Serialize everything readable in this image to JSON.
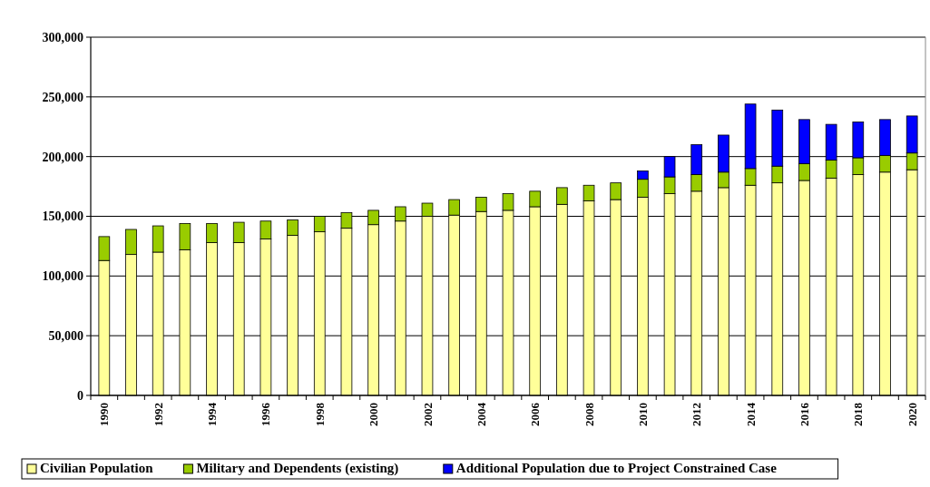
{
  "chart_data": {
    "type": "bar",
    "stacked": true,
    "categories": [
      "1990",
      null,
      "1992",
      null,
      "1994",
      null,
      "1996",
      null,
      "1998",
      null,
      "2000",
      null,
      "2002",
      null,
      "2004",
      null,
      "2006",
      null,
      "2008",
      null,
      "2010",
      null,
      "2012",
      null,
      "2014",
      null,
      "2016",
      null,
      "2018",
      null,
      "2020"
    ],
    "series": [
      {
        "name": "Civilian Population",
        "color": "#ffff99",
        "values": [
          113000,
          118000,
          120000,
          122000,
          128000,
          128000,
          131000,
          134000,
          137000,
          140000,
          143000,
          146000,
          150000,
          151000,
          154000,
          155000,
          158000,
          160000,
          163000,
          164000,
          166000,
          169000,
          171000,
          174000,
          176000,
          178000,
          180000,
          182000,
          185000,
          187000,
          189000
        ]
      },
      {
        "name": "Military and Dependents (existing)",
        "color": "#99cc00",
        "values": [
          20000,
          21000,
          22000,
          22000,
          16000,
          17000,
          15000,
          13000,
          13000,
          13000,
          12000,
          12000,
          11000,
          13000,
          12000,
          14000,
          13000,
          14000,
          13000,
          14000,
          15000,
          14000,
          14000,
          13000,
          14000,
          14000,
          14000,
          15000,
          14000,
          14000,
          14000
        ]
      },
      {
        "name": "Additional Population due to Project Constrained Case",
        "color": "#0000ff",
        "values": [
          null,
          null,
          null,
          null,
          null,
          null,
          null,
          null,
          null,
          null,
          null,
          null,
          null,
          null,
          null,
          null,
          null,
          null,
          null,
          null,
          7000,
          17000,
          25000,
          31000,
          54000,
          47000,
          37000,
          30000,
          30000,
          30000,
          31000
        ]
      }
    ],
    "ylim": [
      0,
      300000
    ],
    "yticks": [
      {
        "value": 0,
        "label": "0"
      },
      {
        "value": 50000,
        "label": "50,000"
      },
      {
        "value": 100000,
        "label": "100,000"
      },
      {
        "value": 150000,
        "label": "150,000"
      },
      {
        "value": 200000,
        "label": "200,000"
      },
      {
        "value": 250000,
        "label": "250,000"
      },
      {
        "value": 300000,
        "label": "300,000"
      }
    ],
    "grid": "y",
    "legend": "bottom"
  }
}
